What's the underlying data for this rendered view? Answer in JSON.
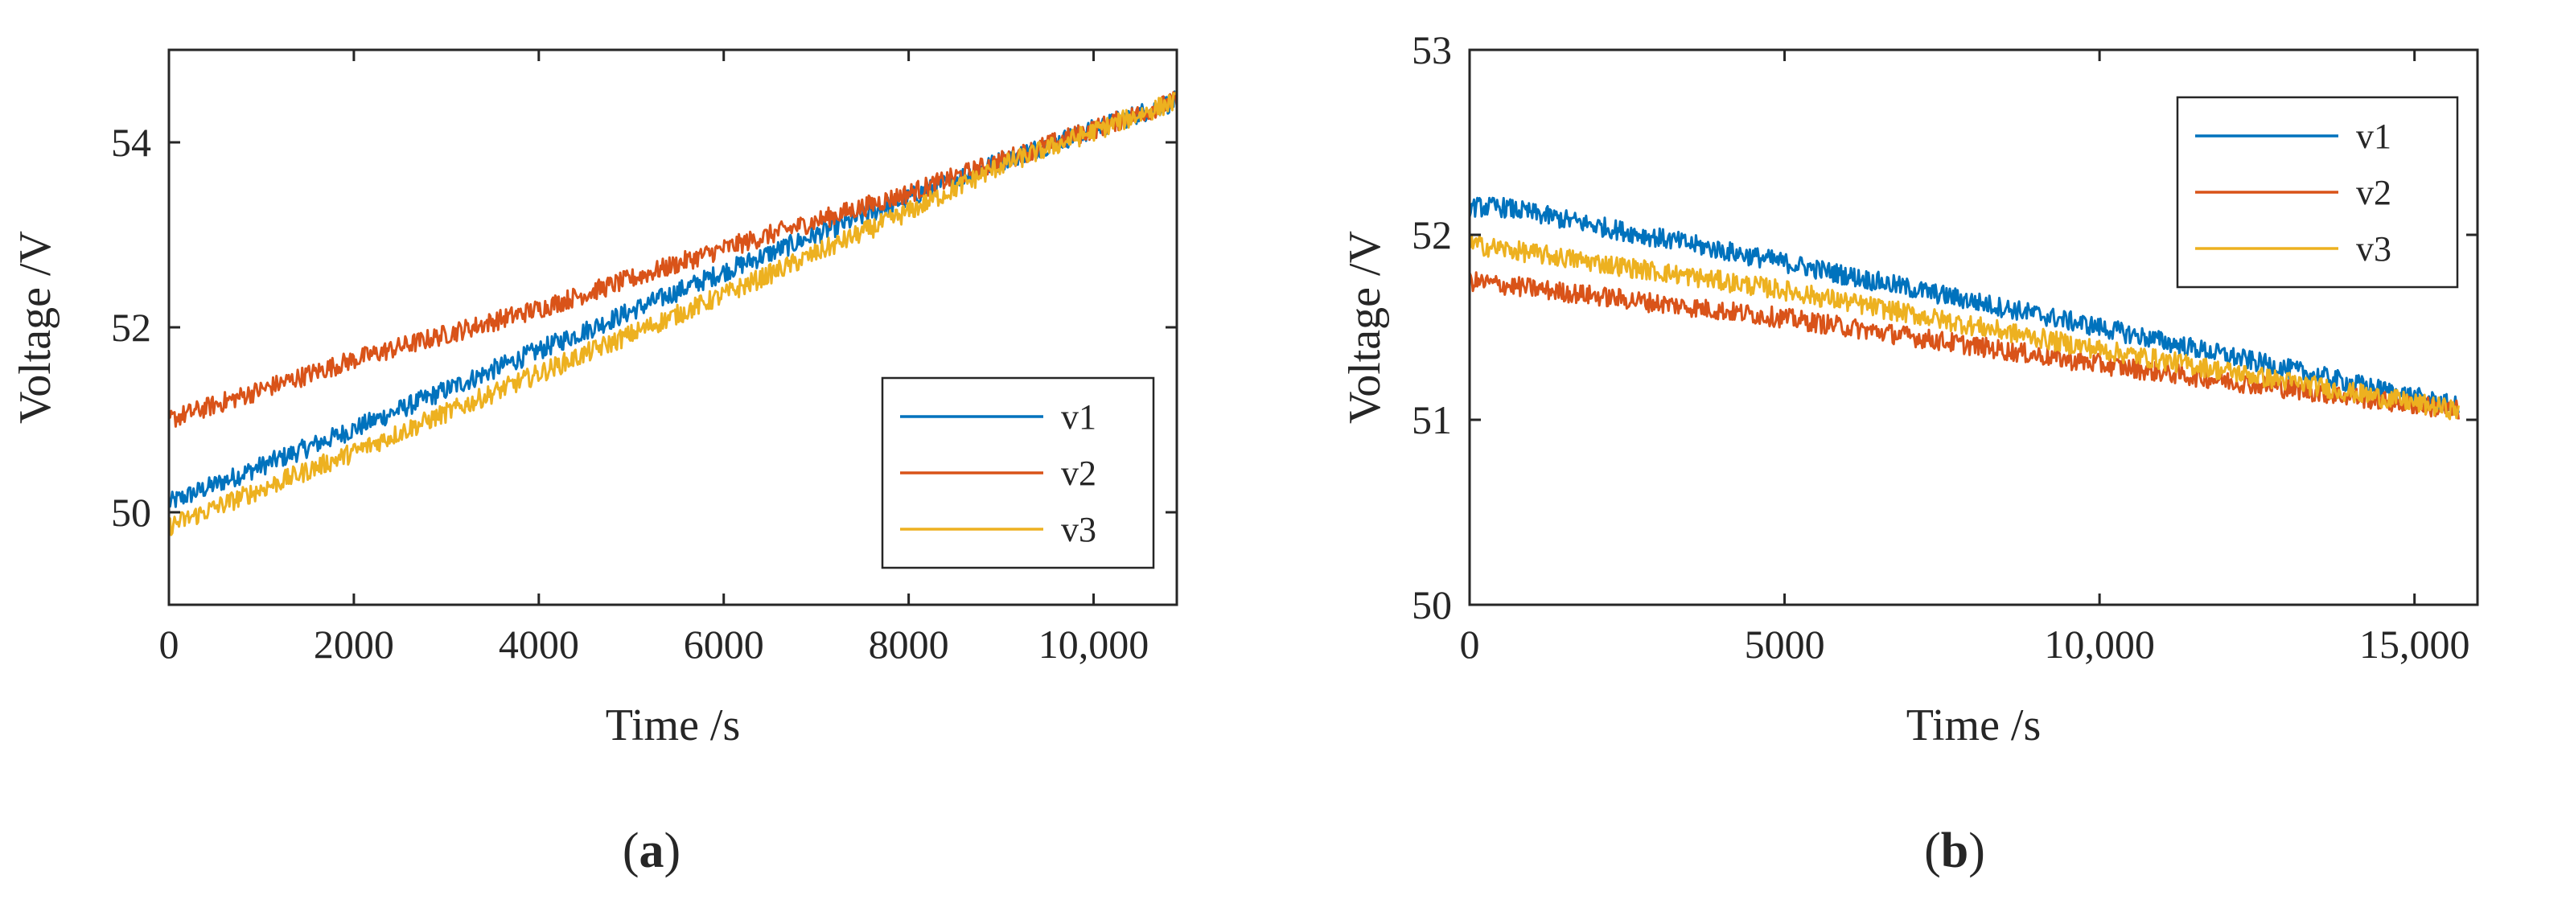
{
  "chart_data": [
    {
      "panel": "a",
      "caption_letter": "a",
      "type": "line",
      "xlabel": "Time /s",
      "ylabel": "Voltage /V",
      "xlim": [
        0,
        10900
      ],
      "ylim": [
        49,
        55
      ],
      "xticks": [
        0,
        2000,
        4000,
        6000,
        8000,
        10000
      ],
      "xtick_labels": [
        "0",
        "2000",
        "4000",
        "6000",
        "8000",
        "10,000"
      ],
      "yticks": [
        50,
        52,
        54
      ],
      "ytick_labels": [
        "50",
        "52",
        "54"
      ],
      "legend_position": "bottom-right",
      "series": [
        {
          "name": "v1",
          "color": "#0072BD",
          "x": [
            0,
            2000,
            4000,
            6000,
            8000,
            9000,
            10900
          ],
          "y": [
            50.1,
            50.9,
            51.75,
            52.6,
            53.4,
            53.8,
            54.45
          ]
        },
        {
          "name": "v2",
          "color": "#D95319",
          "x": [
            0,
            2000,
            4000,
            6000,
            8000,
            9000,
            10900
          ],
          "y": [
            51.0,
            51.65,
            52.2,
            52.85,
            53.45,
            53.8,
            54.45
          ]
        },
        {
          "name": "v3",
          "color": "#EDB120",
          "x": [
            0,
            2000,
            4000,
            6000,
            8000,
            9000,
            10900
          ],
          "y": [
            49.85,
            50.65,
            51.5,
            52.35,
            53.25,
            53.75,
            54.45
          ]
        }
      ]
    },
    {
      "panel": "b",
      "caption_letter": "b",
      "type": "line",
      "xlabel": "Time /s",
      "ylabel": "Voltage /V",
      "xlim": [
        0,
        16000
      ],
      "ylim": [
        50,
        53
      ],
      "xticks": [
        0,
        5000,
        10000,
        15000
      ],
      "xtick_labels": [
        "0",
        "5000",
        "10,000",
        "15,000"
      ],
      "yticks": [
        50,
        51,
        52,
        53
      ],
      "ytick_labels": [
        "50",
        "51",
        "52",
        "53"
      ],
      "legend_position": "top-right",
      "series": [
        {
          "name": "v1",
          "color": "#0072BD",
          "x": [
            0,
            500,
            5000,
            10000,
            15700
          ],
          "y": [
            52.15,
            52.15,
            51.85,
            51.5,
            51.07
          ]
        },
        {
          "name": "v2",
          "color": "#D95319",
          "x": [
            0,
            5000,
            10000,
            15700
          ],
          "y": [
            51.75,
            51.55,
            51.3,
            51.05
          ]
        },
        {
          "name": "v3",
          "color": "#EDB120",
          "x": [
            0,
            5000,
            10000,
            15700
          ],
          "y": [
            51.95,
            51.7,
            51.38,
            51.05
          ]
        }
      ]
    }
  ]
}
